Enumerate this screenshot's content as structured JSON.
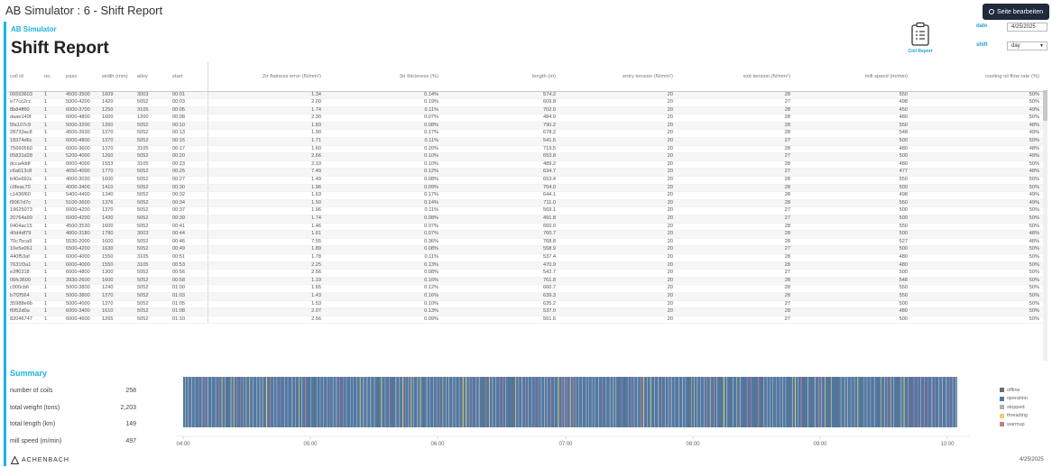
{
  "app_title": "AB Simulator : 6 - Shift Report",
  "edit_button_label": "Seite bearbeiten",
  "brand_sub": "AB Simulator",
  "page_title": "Shift Report",
  "coil_report_label": "Coil Report",
  "filters": {
    "date_label": "date",
    "date_value": "4/25/2025",
    "shift_label": "shift",
    "shift_value": "day"
  },
  "table": {
    "columns": [
      "coil id",
      "no.",
      "pass",
      "width (mm)",
      "alloy",
      "start",
      "2σ flatness error (N/mm²)",
      "3σ thickness (%)",
      "length (m)",
      "entry tension (N/mm²)",
      "exit tension (N/mm²)",
      "mill speed (m/min)",
      "cooling oil flow rate (%)"
    ],
    "rows": [
      [
        "06593603",
        "1",
        "4500-3500",
        "1609",
        "3003",
        "00:01",
        "1.34",
        "0.14%",
        "574.2",
        "20",
        "28",
        "550",
        "50%"
      ],
      [
        "e77cc2cc",
        "1",
        "5000-4200",
        "1420",
        "5052",
        "00:03",
        "2.00",
        "0.19%",
        "609.8",
        "20",
        "27",
        "498",
        "50%"
      ],
      [
        "8b84ff60",
        "1",
        "6000-3700",
        "1250",
        "3105",
        "00:05",
        "1.74",
        "0.11%",
        "702.0",
        "20",
        "28",
        "450",
        "49%"
      ],
      [
        "daae140f",
        "1",
        "6000-4800",
        "1600",
        "1200",
        "00:08",
        "2.30",
        "0.07%",
        "484.9",
        "20",
        "28",
        "480",
        "50%"
      ],
      [
        "5fa107c9",
        "1",
        "5000-3200",
        "1260",
        "5052",
        "00:10",
        "1.83",
        "0.08%",
        "790.2",
        "20",
        "28",
        "550",
        "48%"
      ],
      [
        "28733ac8",
        "1",
        "4500-3930",
        "1370",
        "5052",
        "00:13",
        "1.90",
        "0.17%",
        "678.2",
        "20",
        "28",
        "548",
        "49%"
      ],
      [
        "18374d6c",
        "1",
        "6000-4800",
        "1370",
        "5052",
        "00:15",
        "1.71",
        "0.11%",
        "541.6",
        "20",
        "27",
        "500",
        "50%"
      ],
      [
        "75660560",
        "1",
        "6000-3600",
        "1370",
        "3105",
        "00:17",
        "1.60",
        "0.20%",
        "719.5",
        "20",
        "28",
        "480",
        "48%"
      ],
      [
        "05831d28",
        "1",
        "5200-4000",
        "1260",
        "5052",
        "00:20",
        "2.66",
        "0.10%",
        "653.8",
        "20",
        "27",
        "500",
        "49%"
      ],
      [
        "dcca4ddf",
        "1",
        "6000-4000",
        "1553",
        "3105",
        "00:23",
        "2.10",
        "0.10%",
        "489.2",
        "20",
        "28",
        "480",
        "50%"
      ],
      [
        "c6a613c8",
        "1",
        "4650-4000",
        "1770",
        "5052",
        "00:25",
        "7.49",
        "0.12%",
        "634.7",
        "20",
        "27",
        "477",
        "48%"
      ],
      [
        "b40e692c",
        "1",
        "4000-3030",
        "1600",
        "5052",
        "00:27",
        "1.49",
        "0.08%",
        "653.4",
        "20",
        "28",
        "550",
        "50%"
      ],
      [
        "c0feac70",
        "1",
        "4000-3400",
        "1410",
        "5052",
        "00:30",
        "1.96",
        "0.09%",
        "704.0",
        "20",
        "28",
        "500",
        "50%"
      ],
      [
        "c1436f60",
        "1",
        "5400-4400",
        "1340",
        "5052",
        "00:32",
        "1.63",
        "0.17%",
        "644.1",
        "20",
        "28",
        "498",
        "49%"
      ],
      [
        "f9067d7c",
        "1",
        "5100-3600",
        "1376",
        "5052",
        "00:34",
        "1.50",
        "0.14%",
        "711.0",
        "20",
        "28",
        "550",
        "49%"
      ],
      [
        "19625073",
        "1",
        "6000-4200",
        "1370",
        "5052",
        "00:37",
        "1.96",
        "0.11%",
        "569.1",
        "20",
        "27",
        "500",
        "50%"
      ],
      [
        "20764a99",
        "1",
        "6000-4200",
        "1430",
        "5052",
        "00:39",
        "1.74",
        "0.08%",
        "491.8",
        "20",
        "27",
        "500",
        "50%"
      ],
      [
        "0404ac15",
        "1",
        "4500-3530",
        "1600",
        "5052",
        "00:41",
        "1.46",
        "0.07%",
        "660.0",
        "20",
        "28",
        "550",
        "50%"
      ],
      [
        "40d4df79",
        "1",
        "4800-3180",
        "1780",
        "3003",
        "00:44",
        "1.61",
        "0.07%",
        "760.7",
        "20",
        "28",
        "500",
        "48%"
      ],
      [
        "70c7bca9",
        "1",
        "5530-2000",
        "1600",
        "5052",
        "00:46",
        "7.55",
        "0.36%",
        "768.8",
        "20",
        "28",
        "527",
        "48%"
      ],
      [
        "10e5e061",
        "1",
        "6500-4200",
        "1630",
        "5052",
        "00:49",
        "1.89",
        "0.08%",
        "558.9",
        "20",
        "27",
        "500",
        "50%"
      ],
      [
        "440f53af",
        "1",
        "6000-4000",
        "1550",
        "3105",
        "00:51",
        "1.78",
        "0.11%",
        "537.4",
        "20",
        "28",
        "480",
        "50%"
      ],
      [
        "7631f3a1",
        "1",
        "6000-4000",
        "1550",
        "3105",
        "00:53",
        "2.25",
        "0.13%",
        "470.9",
        "20",
        "28",
        "480",
        "50%"
      ],
      [
        "e2ff0318",
        "1",
        "6000-4800",
        "1300",
        "5052",
        "00:56",
        "2.56",
        "0.08%",
        "542.7",
        "20",
        "27",
        "500",
        "50%"
      ],
      [
        "06fc3600",
        "1",
        "3930-2600",
        "1600",
        "5052",
        "00:58",
        "1.19",
        "0.16%",
        "761.8",
        "20",
        "28",
        "548",
        "50%"
      ],
      [
        "c000cb6",
        "1",
        "5000-3800",
        "1240",
        "5052",
        "01:00",
        "1.65",
        "0.12%",
        "660.7",
        "20",
        "28",
        "550",
        "50%"
      ],
      [
        "b7f2f564",
        "1",
        "5000-3800",
        "1370",
        "5052",
        "01:03",
        "1.43",
        "0.16%",
        "639.3",
        "20",
        "28",
        "550",
        "50%"
      ],
      [
        "35988e6b",
        "1",
        "5000-4000",
        "1370",
        "5052",
        "01:05",
        "1.53",
        "0.10%",
        "635.2",
        "20",
        "27",
        "500",
        "50%"
      ],
      [
        "f6f52d0a",
        "1",
        "6000-3400",
        "1610",
        "5052",
        "01:08",
        "2.07",
        "0.13%",
        "537.0",
        "20",
        "28",
        "480",
        "50%"
      ],
      [
        "82046747",
        "1",
        "6000-4600",
        "1265",
        "5052",
        "01:10",
        "2.56",
        "0.09%",
        "561.6",
        "20",
        "27",
        "500",
        "50%"
      ]
    ]
  },
  "summary": {
    "title": "Summary",
    "stats": [
      {
        "label": "number of coils",
        "value": "258"
      },
      {
        "label": "total weight (tons)",
        "value": "2,203"
      },
      {
        "label": "total length (km)",
        "value": "149"
      },
      {
        "label": "mill speed (m/min)",
        "value": "497"
      }
    ]
  },
  "timeline": {
    "ticks": [
      "04:00",
      "05:00",
      "06:00",
      "07:00",
      "08:00",
      "09:00",
      "10:00"
    ],
    "legend": [
      {
        "label": "offline",
        "color": "#6b6b6b"
      },
      {
        "label": "operation",
        "color": "#4e79a7"
      },
      {
        "label": "stopped",
        "color": "#b0b0b0"
      },
      {
        "label": "threading",
        "color": "#f1ce63"
      },
      {
        "label": "warmup",
        "color": "#c77a8e"
      }
    ]
  },
  "footer": {
    "brand": "ACHENBACH",
    "date": "4/25/2025"
  }
}
